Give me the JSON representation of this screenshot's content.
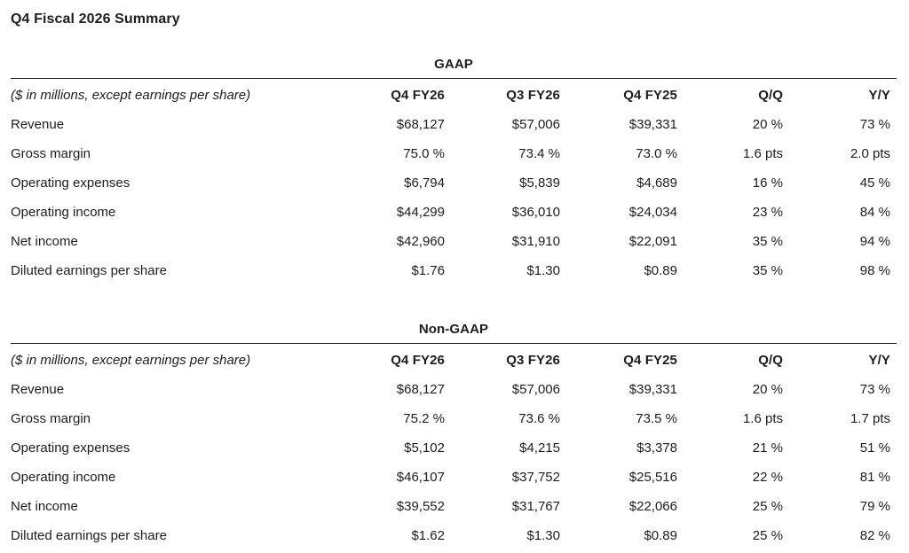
{
  "page_title": "Q4 Fiscal 2026 Summary",
  "colors": {
    "text": "#1d1d1d",
    "rule": "#1c1c1c",
    "background": "#ffffff"
  },
  "tables": [
    {
      "title": "GAAP",
      "unit_note": "($ in millions, except earnings per share)",
      "columns": [
        "Q4 FY26",
        "Q3 FY26",
        "Q4 FY25",
        "Q/Q",
        "Y/Y"
      ],
      "rows": [
        {
          "label": "Revenue",
          "values": [
            "$68,127",
            "$57,006",
            "$39,331",
            "20 %",
            "73 %"
          ]
        },
        {
          "label": "Gross margin",
          "values": [
            "75.0 %",
            "73.4 %",
            "73.0 %",
            "1.6 pts",
            "2.0 pts"
          ]
        },
        {
          "label": "Operating expenses",
          "values": [
            "$6,794",
            "$5,839",
            "$4,689",
            "16 %",
            "45 %"
          ]
        },
        {
          "label": "Operating income",
          "values": [
            "$44,299",
            "$36,010",
            "$24,034",
            "23 %",
            "84 %"
          ]
        },
        {
          "label": "Net income",
          "values": [
            "$42,960",
            "$31,910",
            "$22,091",
            "35 %",
            "94 %"
          ]
        },
        {
          "label": "Diluted earnings per share",
          "values": [
            "$1.76",
            "$1.30",
            "$0.89",
            "35 %",
            "98 %"
          ]
        }
      ]
    },
    {
      "title": "Non-GAAP",
      "unit_note": "($ in millions, except earnings per share)",
      "columns": [
        "Q4 FY26",
        "Q3 FY26",
        "Q4 FY25",
        "Q/Q",
        "Y/Y"
      ],
      "rows": [
        {
          "label": "Revenue",
          "values": [
            "$68,127",
            "$57,006",
            "$39,331",
            "20 %",
            "73 %"
          ]
        },
        {
          "label": "Gross margin",
          "values": [
            "75.2 %",
            "73.6 %",
            "73.5 %",
            "1.6 pts",
            "1.7 pts"
          ]
        },
        {
          "label": "Operating expenses",
          "values": [
            "$5,102",
            "$4,215",
            "$3,378",
            "21 %",
            "51 %"
          ]
        },
        {
          "label": "Operating income",
          "values": [
            "$46,107",
            "$37,752",
            "$25,516",
            "22 %",
            "81 %"
          ]
        },
        {
          "label": "Net income",
          "values": [
            "$39,552",
            "$31,767",
            "$22,066",
            "25 %",
            "79 %"
          ]
        },
        {
          "label": "Diluted earnings per share",
          "values": [
            "$1.62",
            "$1.30",
            "$0.89",
            "25 %",
            "82 %"
          ]
        }
      ]
    }
  ]
}
